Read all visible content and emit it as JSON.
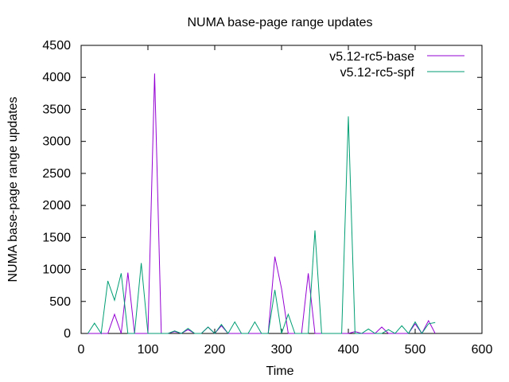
{
  "chart_data": {
    "type": "line",
    "title": "NUMA base-page range updates",
    "xlabel": "Time",
    "ylabel": "NUMA base-page range updates",
    "xlim": [
      0,
      600
    ],
    "ylim": [
      0,
      4500
    ],
    "xticks": [
      0,
      100,
      200,
      300,
      400,
      500,
      600
    ],
    "yticks": [
      0,
      500,
      1000,
      1500,
      2000,
      2500,
      3000,
      3500,
      4000,
      4500
    ],
    "grid": false,
    "legend_position": "top-right",
    "series": [
      {
        "name": "v5.12-rc5-base",
        "color": "#9400d3",
        "x": [
          10,
          20,
          30,
          40,
          50,
          60,
          70,
          80,
          90,
          100,
          110,
          120,
          130,
          140,
          150,
          160,
          170,
          180,
          190,
          200,
          210,
          220,
          230,
          240,
          250,
          260,
          270,
          280,
          290,
          300,
          310,
          320,
          330,
          340,
          350,
          360,
          370,
          380,
          390,
          400,
          410,
          420,
          430,
          440,
          450,
          460,
          470,
          480,
          490,
          500,
          510,
          520,
          530
        ],
        "y": [
          0,
          0,
          0,
          0,
          300,
          0,
          950,
          0,
          0,
          0,
          4060,
          0,
          0,
          30,
          0,
          60,
          0,
          0,
          100,
          0,
          120,
          0,
          0,
          0,
          0,
          0,
          0,
          0,
          1200,
          700,
          0,
          0,
          0,
          940,
          0,
          0,
          0,
          0,
          0,
          0,
          30,
          0,
          0,
          0,
          100,
          0,
          0,
          0,
          0,
          150,
          0,
          200,
          0
        ]
      },
      {
        "name": "v5.12-rc5-spf",
        "color": "#009e73",
        "x": [
          10,
          20,
          30,
          40,
          50,
          60,
          70,
          80,
          90,
          100,
          110,
          120,
          130,
          140,
          150,
          160,
          170,
          180,
          190,
          200,
          210,
          220,
          230,
          240,
          250,
          260,
          270,
          280,
          290,
          300,
          310,
          320,
          330,
          340,
          350,
          360,
          370,
          380,
          390,
          400,
          410,
          420,
          430,
          440,
          450,
          460,
          470,
          480,
          490,
          500,
          510,
          520,
          530
        ],
        "y": [
          0,
          160,
          0,
          820,
          520,
          940,
          0,
          0,
          1100,
          0,
          0,
          0,
          0,
          40,
          0,
          80,
          0,
          0,
          100,
          0,
          140,
          0,
          180,
          0,
          0,
          180,
          0,
          0,
          680,
          0,
          300,
          0,
          0,
          0,
          1610,
          0,
          0,
          0,
          0,
          3390,
          0,
          0,
          70,
          0,
          0,
          60,
          0,
          120,
          0,
          180,
          0,
          150,
          170
        ]
      }
    ]
  }
}
